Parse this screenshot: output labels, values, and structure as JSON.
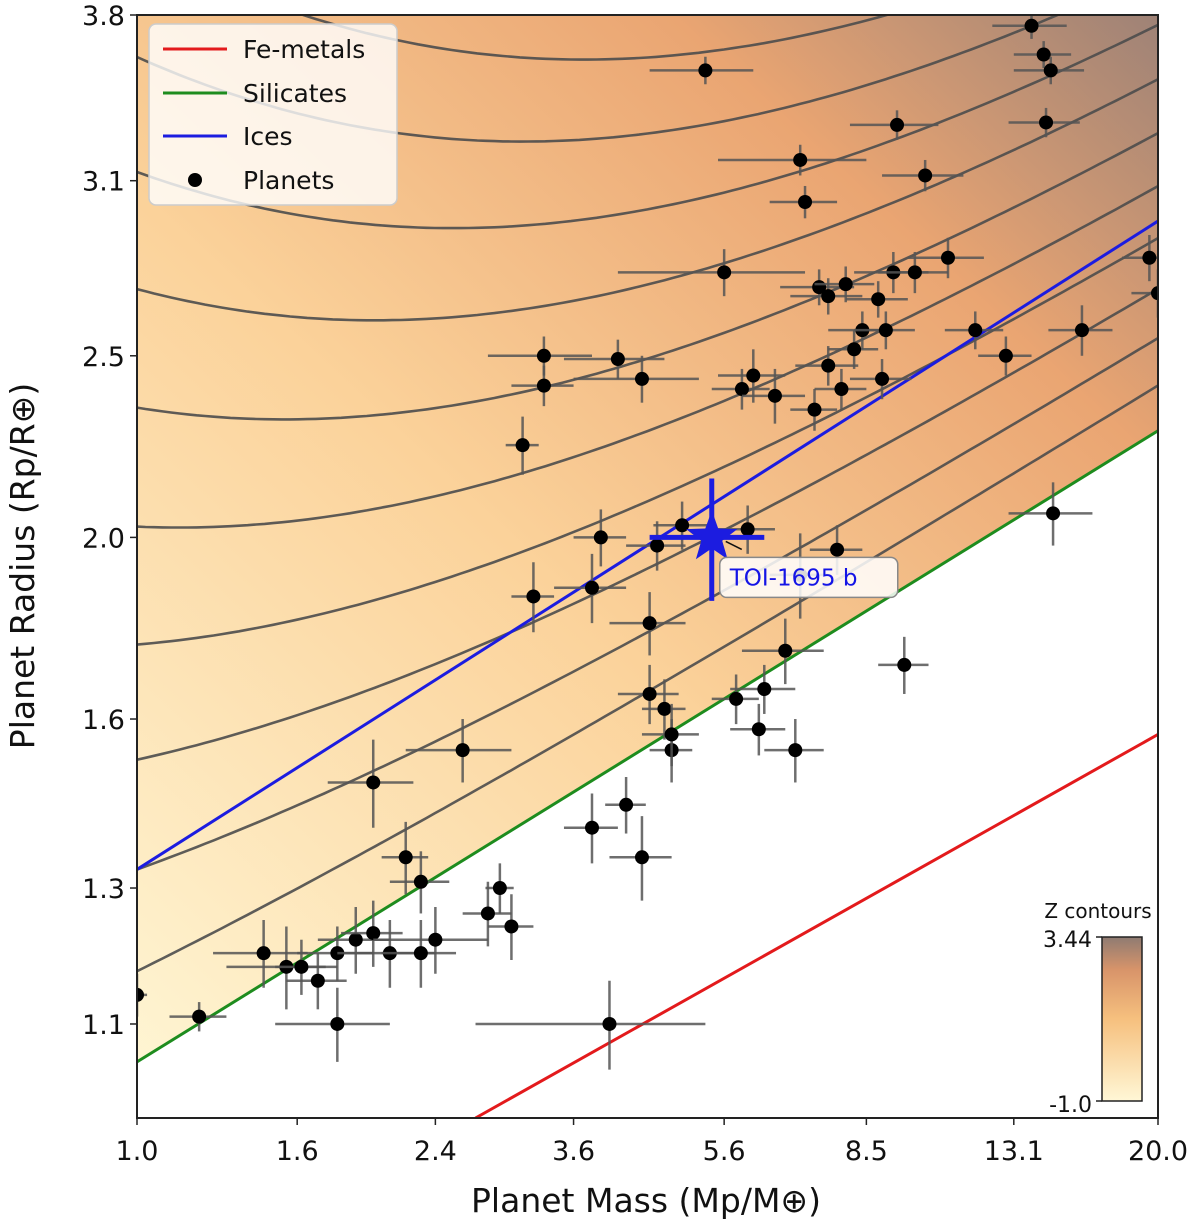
{
  "chart_data": {
    "type": "scatter",
    "xlabel": "Planet Mass (Mp/M⊕)",
    "ylabel": "Planet Radius (Rp/R⊕)",
    "x_scale": "log",
    "y_scale": "log",
    "xlim": [
      1.0,
      20.0
    ],
    "ylim": [
      0.98,
      3.8
    ],
    "x_ticks": [
      "1.0",
      "1.6",
      "2.4",
      "3.6",
      "5.6",
      "8.5",
      "13.1",
      "20.0"
    ],
    "y_ticks": [
      "1.1",
      "1.3",
      "1.6",
      "2.0",
      "2.5",
      "3.1",
      "3.8"
    ],
    "grid": false,
    "legend_position": "top-left",
    "legend": [
      {
        "label": "Fe-metals",
        "color": "#e31a1c",
        "kind": "line"
      },
      {
        "label": "Silicates",
        "color": "#1e8c1e",
        "kind": "line"
      },
      {
        "label": "Ices",
        "color": "#1c1ce0",
        "kind": "line"
      },
      {
        "label": "Planets",
        "color": "#000000",
        "kind": "marker"
      }
    ],
    "composition_lines": [
      {
        "name": "Fe-metals",
        "color": "#e31a1c",
        "points": [
          [
            2.7,
            0.98
          ],
          [
            20.0,
            1.57
          ]
        ]
      },
      {
        "name": "Silicates",
        "color": "#1e8c1e",
        "points": [
          [
            1.0,
            1.05
          ],
          [
            20.0,
            2.28
          ]
        ]
      },
      {
        "name": "Ices",
        "color": "#1c1ce0",
        "points": [
          [
            1.0,
            1.33
          ],
          [
            20.0,
            2.95
          ]
        ]
      }
    ],
    "colorbar": {
      "title": "Z contours",
      "min_label": "-1.0",
      "max_label": "3.44",
      "min": -1.0,
      "max": 3.44
    },
    "highlight": {
      "label": "TOI-1695 b",
      "mass": 5.4,
      "radius": 2.0,
      "mass_err": [
        0.9,
        0.9
      ],
      "radius_err": [
        0.15,
        0.15
      ],
      "color": "#1c1ce0"
    },
    "planets": [
      [
        1.0,
        1.14,
        0.03,
        0.03
      ],
      [
        1.2,
        1.11,
        0.1,
        0.02
      ],
      [
        1.45,
        1.2,
        0.2,
        0.05
      ],
      [
        1.55,
        1.18,
        0.25,
        0.06
      ],
      [
        1.62,
        1.18,
        0.12,
        0.04
      ],
      [
        1.7,
        1.16,
        0.15,
        0.04
      ],
      [
        1.8,
        1.1,
        0.3,
        0.05
      ],
      [
        1.8,
        1.2,
        0.2,
        0.04
      ],
      [
        1.9,
        1.22,
        0.2,
        0.05
      ],
      [
        2.0,
        1.48,
        0.25,
        0.08
      ],
      [
        2.0,
        1.23,
        0.18,
        0.05
      ],
      [
        2.1,
        1.2,
        0.3,
        0.05
      ],
      [
        2.2,
        1.35,
        0.15,
        0.06
      ],
      [
        2.3,
        1.31,
        0.2,
        0.05
      ],
      [
        2.3,
        1.2,
        0.25,
        0.05
      ],
      [
        2.4,
        1.22,
        0.4,
        0.05
      ],
      [
        2.6,
        1.54,
        0.4,
        0.06
      ],
      [
        2.8,
        1.26,
        0.2,
        0.05
      ],
      [
        2.9,
        1.3,
        0.12,
        0.04
      ],
      [
        3.0,
        1.24,
        0.2,
        0.05
      ],
      [
        3.1,
        2.24,
        0.15,
        0.08
      ],
      [
        3.2,
        1.86,
        0.2,
        0.08
      ],
      [
        3.3,
        2.5,
        0.5,
        0.06
      ],
      [
        3.3,
        2.41,
        0.3,
        0.06
      ],
      [
        3.8,
        1.4,
        0.3,
        0.06
      ],
      [
        3.8,
        1.88,
        0.4,
        0.08
      ],
      [
        3.9,
        2.0,
        0.3,
        0.07
      ],
      [
        4.0,
        1.1,
        1.3,
        0.06
      ],
      [
        4.1,
        2.49,
        0.6,
        0.06
      ],
      [
        4.2,
        1.44,
        0.25,
        0.05
      ],
      [
        4.4,
        1.35,
        0.4,
        0.07
      ],
      [
        4.4,
        2.43,
        0.8,
        0.07
      ],
      [
        4.5,
        1.8,
        0.5,
        0.07
      ],
      [
        4.5,
        1.65,
        0.4,
        0.06
      ],
      [
        4.6,
        1.98,
        0.4,
        0.06
      ],
      [
        4.7,
        1.62,
        0.3,
        0.06
      ],
      [
        4.8,
        1.54,
        0.3,
        0.06
      ],
      [
        4.8,
        1.57,
        0.4,
        0.06
      ],
      [
        4.95,
        2.03,
        0.4,
        0.06
      ],
      [
        5.3,
        3.55,
        0.8,
        0.06
      ],
      [
        5.6,
        2.77,
        1.5,
        0.08
      ],
      [
        5.8,
        1.64,
        0.4,
        0.05
      ],
      [
        5.9,
        2.4,
        0.5,
        0.06
      ],
      [
        6.0,
        2.02,
        0.5,
        0.06
      ],
      [
        6.1,
        2.44,
        0.6,
        0.08
      ],
      [
        6.2,
        1.58,
        0.5,
        0.05
      ],
      [
        6.3,
        1.66,
        0.6,
        0.05
      ],
      [
        6.5,
        2.38,
        0.6,
        0.08
      ],
      [
        6.7,
        1.74,
        0.8,
        0.07
      ],
      [
        6.9,
        1.54,
        0.6,
        0.06
      ],
      [
        7.0,
        1.91,
        0.6,
        0.1
      ],
      [
        7.0,
        3.18,
        1.5,
        0.06
      ],
      [
        7.1,
        3.02,
        0.7,
        0.06
      ],
      [
        7.3,
        2.34,
        0.5,
        0.06
      ],
      [
        7.4,
        2.72,
        0.8,
        0.06
      ],
      [
        7.6,
        2.47,
        0.7,
        0.06
      ],
      [
        7.6,
        2.69,
        0.8,
        0.06
      ],
      [
        7.8,
        1.97,
        0.6,
        0.06
      ],
      [
        7.9,
        2.4,
        0.6,
        0.06
      ],
      [
        8.0,
        2.73,
        0.7,
        0.06
      ],
      [
        8.2,
        2.52,
        0.6,
        0.06
      ],
      [
        8.4,
        2.58,
        0.8,
        0.06
      ],
      [
        8.8,
        2.68,
        0.8,
        0.06
      ],
      [
        8.9,
        2.43,
        0.8,
        0.06
      ],
      [
        9.0,
        2.58,
        0.8,
        0.06
      ],
      [
        9.2,
        2.77,
        1.0,
        0.07
      ],
      [
        9.3,
        3.32,
        1.2,
        0.06
      ],
      [
        9.5,
        1.71,
        0.7,
        0.06
      ],
      [
        9.8,
        2.77,
        1.0,
        0.07
      ],
      [
        10.1,
        3.12,
        1.2,
        0.06
      ],
      [
        10.8,
        2.82,
        1.2,
        0.07
      ],
      [
        11.7,
        2.58,
        1.0,
        0.06
      ],
      [
        12.8,
        2.5,
        1.0,
        0.06
      ],
      [
        13.8,
        3.75,
        1.5,
        0.06
      ],
      [
        14.3,
        3.62,
        1.2,
        0.06
      ],
      [
        14.4,
        3.33,
        1.5,
        0.06
      ],
      [
        14.6,
        3.55,
        1.5,
        0.06
      ],
      [
        14.7,
        2.06,
        1.8,
        0.08
      ],
      [
        16.0,
        2.58,
        1.5,
        0.08
      ],
      [
        19.5,
        2.82,
        1.5,
        0.08
      ],
      [
        20.0,
        2.7,
        1.5,
        0.08
      ]
    ]
  }
}
